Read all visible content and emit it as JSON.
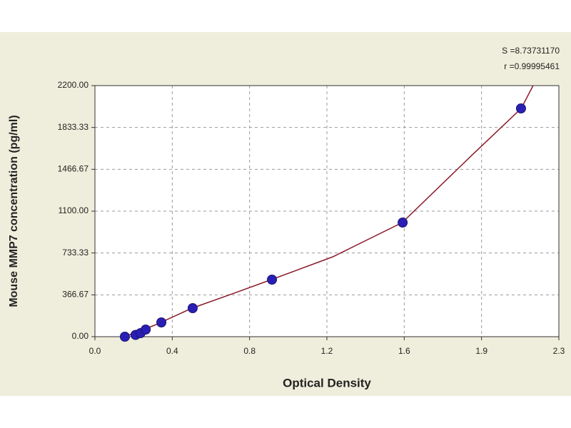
{
  "chart_data": {
    "type": "scatter",
    "x_label": "Optical Density",
    "y_label": "Mouse MMP7 concentration (pg/ml)",
    "annotations": [
      "S =8.73731170",
      "r =0.99995461"
    ],
    "xlim": [
      0,
      2.34
    ],
    "xticks": [
      {
        "value": 0,
        "label": "0.0"
      },
      {
        "value": 0.39,
        "label": "0.4"
      },
      {
        "value": 0.78,
        "label": "0.8"
      },
      {
        "value": 1.17,
        "label": "1.2"
      },
      {
        "value": 1.56,
        "label": "1.6"
      },
      {
        "value": 1.95,
        "label": "1.9"
      },
      {
        "value": 2.34,
        "label": "2.3"
      }
    ],
    "ylim": [
      0,
      2200
    ],
    "yticks": [
      {
        "value": 0,
        "label": "0.00"
      },
      366.67,
      733.33,
      {
        "value": 1100,
        "label": "1100.00"
      },
      1466.67,
      1833.33,
      {
        "value": 2200,
        "label": "2200.00"
      }
    ],
    "grid": true,
    "series": [
      {
        "mode": "markers",
        "color": "#2a1fb5",
        "x": [
          0.151,
          0.205,
          0.23,
          0.256,
          0.335,
          0.493,
          0.893,
          1.552,
          2.149
        ],
        "values": [
          0,
          15.6,
          31.25,
          62.5,
          125,
          250,
          500,
          1000,
          2000
        ]
      },
      {
        "mode": "line",
        "color": "#8b1a2a",
        "x": [
          0.15,
          0.3,
          0.49,
          0.7,
          0.89,
          1.2,
          1.55,
          1.9,
          2.15,
          2.21
        ],
        "values": [
          0,
          100,
          250,
          380,
          500,
          700,
          1000,
          1588,
          2000,
          2200
        ]
      }
    ]
  }
}
